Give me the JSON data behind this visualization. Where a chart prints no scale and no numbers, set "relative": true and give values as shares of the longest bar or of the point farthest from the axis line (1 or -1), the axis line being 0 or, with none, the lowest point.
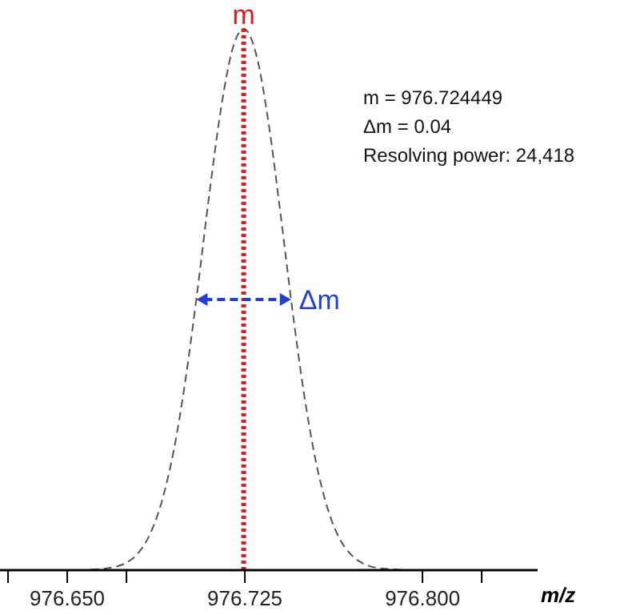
{
  "chart_data": {
    "type": "line",
    "relative": true,
    "xlabel": "m/z",
    "x": [
      976.66,
      976.67,
      976.675,
      976.68,
      976.685,
      976.69,
      976.695,
      976.7,
      976.705,
      976.71,
      976.715,
      976.72,
      976.7245,
      976.73,
      976.735,
      976.74,
      976.745,
      976.75,
      976.755,
      976.76,
      976.765,
      976.77,
      976.775,
      976.78,
      976.79
    ],
    "series": [
      {
        "color": "#555555",
        "values": [
          0.001,
          0.006,
          0.014,
          0.032,
          0.067,
          0.128,
          0.222,
          0.354,
          0.518,
          0.695,
          0.855,
          0.966,
          1,
          0.949,
          0.826,
          0.66,
          0.483,
          0.325,
          0.2,
          0.113,
          0.058,
          0.028,
          0.012,
          0.005,
          0.001
        ]
      }
    ],
    "xlim": [
      976.6216,
      976.8486
    ],
    "xticks": [
      {
        "value": 976.625,
        "label": null
      },
      {
        "value": 976.65,
        "label": "976.650"
      },
      {
        "value": 976.675,
        "label": null
      },
      {
        "value": 976.725,
        "label": "976.725"
      },
      {
        "value": 976.8,
        "label": "976.800"
      },
      {
        "value": 976.825,
        "label": null
      }
    ],
    "ref_lines": [
      {
        "axis": "x",
        "value": 976.7245,
        "label": "m",
        "color": "#e31a1c",
        "line_style": "dotted"
      }
    ],
    "annotations": [
      {
        "text": "Δm",
        "x": 976.7445,
        "y": 0.5
      },
      "m = 976.724449",
      "Δm = 0.04",
      "Resolving power: 24,418"
    ],
    "line_style": "dashed"
  }
}
